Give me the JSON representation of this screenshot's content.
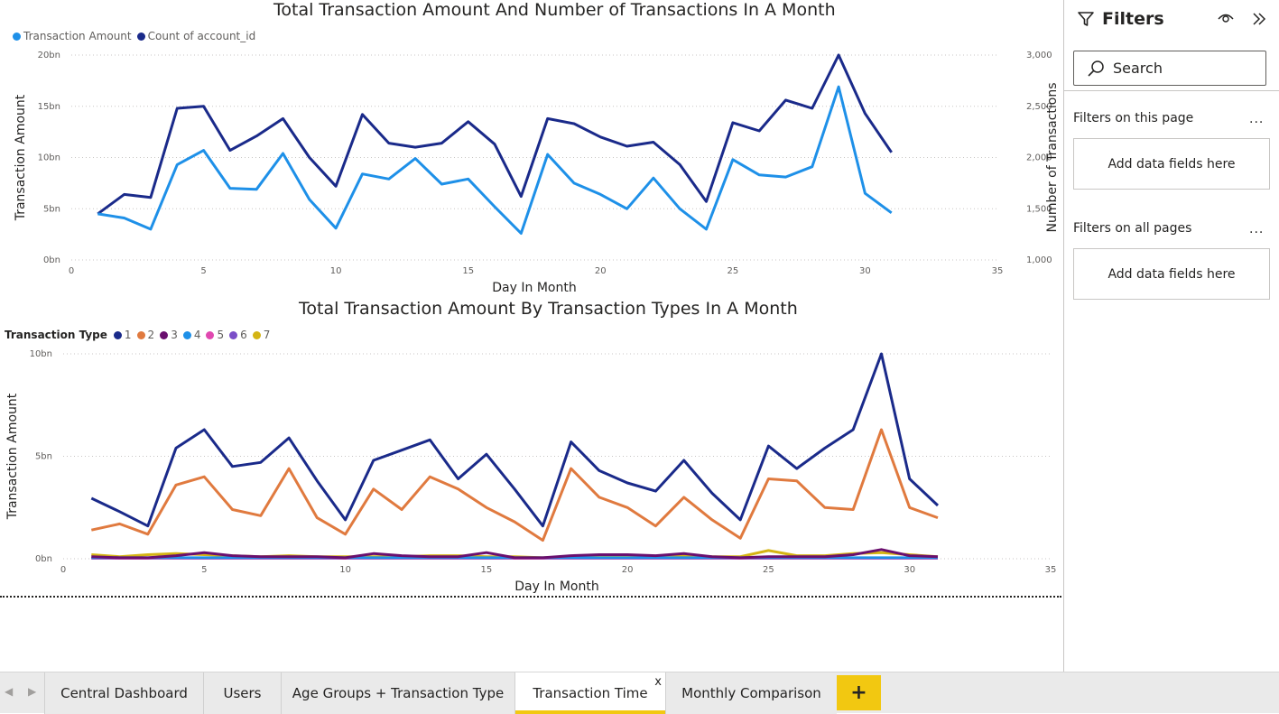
{
  "chart1": {
    "title": "Total Transaction Amount And Number of Transactions In A Month",
    "legend": [
      {
        "label": "Transaction Amount",
        "color": "#1e90e8"
      },
      {
        "label": "Count of account_id",
        "color": "#1a2a8a"
      }
    ],
    "y_left_title": "Transaction Amount",
    "y_right_title": "Number of Transactions",
    "x_title": "Day In Month"
  },
  "chart2": {
    "title": "Total Transaction Amount By Transaction Types In A Month",
    "legend_title": "Transaction Type",
    "y_title": "Transaction Amount",
    "x_title": "Day In Month"
  },
  "chart_data": [
    {
      "type": "line",
      "title": "Total Transaction Amount And Number of Transactions In A Month",
      "xlabel": "Day In Month",
      "ylabel": "Transaction Amount",
      "y2label": "Number of Transactions",
      "xlim": [
        0,
        35
      ],
      "x_ticks": [
        0,
        5,
        10,
        15,
        20,
        25,
        30,
        35
      ],
      "ylim": [
        0,
        20
      ],
      "y_ticks": [
        {
          "v": 0,
          "label": "0bn"
        },
        {
          "v": 5,
          "label": "5bn"
        },
        {
          "v": 10,
          "label": "10bn"
        },
        {
          "v": 15,
          "label": "15bn"
        },
        {
          "v": 20,
          "label": "20bn"
        }
      ],
      "y2lim": [
        1000,
        3000
      ],
      "y2_ticks": [
        {
          "v": 1000,
          "label": "1,000"
        },
        {
          "v": 1500,
          "label": "1,500"
        },
        {
          "v": 2000,
          "label": "2,000"
        },
        {
          "v": 2500,
          "label": "2,500"
        },
        {
          "v": 3000,
          "label": "3,000"
        }
      ],
      "grid": true,
      "legend_position": "top-left",
      "x": [
        1,
        2,
        3,
        4,
        5,
        6,
        7,
        8,
        9,
        10,
        11,
        12,
        13,
        14,
        15,
        16,
        17,
        18,
        19,
        20,
        21,
        22,
        23,
        24,
        25,
        26,
        27,
        28,
        29,
        30,
        31
      ],
      "series": [
        {
          "name": "Transaction Amount",
          "axis": "left",
          "color": "#1e90e8",
          "values": [
            4.5,
            4.1,
            3.0,
            9.3,
            10.7,
            7.0,
            6.9,
            10.4,
            5.9,
            3.1,
            8.4,
            7.9,
            9.9,
            7.4,
            7.9,
            5.2,
            2.6,
            10.3,
            7.5,
            6.4,
            5.0,
            8.0,
            5.0,
            3.0,
            9.8,
            8.3,
            8.1,
            9.1,
            16.9,
            6.5,
            4.6
          ]
        },
        {
          "name": "Count of account_id",
          "axis": "right",
          "color": "#1a2a8a",
          "values": [
            1450,
            1640,
            1610,
            2480,
            2500,
            2070,
            2210,
            2380,
            2000,
            1720,
            2420,
            2140,
            2100,
            2140,
            2350,
            2130,
            1620,
            2380,
            2330,
            2200,
            2110,
            2150,
            1930,
            1570,
            2340,
            2260,
            2560,
            2480,
            3000,
            2430,
            2050
          ]
        }
      ]
    },
    {
      "type": "line",
      "title": "Total Transaction Amount By Transaction Types In A Month",
      "xlabel": "Day In Month",
      "ylabel": "Transaction Amount",
      "xlim": [
        0,
        35
      ],
      "x_ticks": [
        0,
        5,
        10,
        15,
        20,
        25,
        30,
        35
      ],
      "ylim": [
        0,
        10
      ],
      "y_ticks": [
        {
          "v": 0,
          "label": "0bn"
        },
        {
          "v": 5,
          "label": "5bn"
        },
        {
          "v": 10,
          "label": "10bn"
        }
      ],
      "grid": true,
      "legend_position": "top-left",
      "x": [
        1,
        2,
        3,
        4,
        5,
        6,
        7,
        8,
        9,
        10,
        11,
        12,
        13,
        14,
        15,
        16,
        17,
        18,
        19,
        20,
        21,
        22,
        23,
        24,
        25,
        26,
        27,
        28,
        29,
        30,
        31
      ],
      "series": [
        {
          "name": "1",
          "color": "#1a2a8a",
          "values": [
            2.95,
            2.3,
            1.6,
            5.4,
            6.3,
            4.5,
            4.7,
            5.9,
            3.8,
            1.9,
            4.8,
            5.3,
            5.8,
            3.9,
            5.1,
            3.4,
            1.6,
            5.7,
            4.3,
            3.7,
            3.3,
            4.8,
            3.2,
            1.9,
            5.5,
            4.4,
            5.4,
            6.3,
            10.0,
            3.9,
            2.6
          ]
        },
        {
          "name": "2",
          "color": "#e07a3f",
          "values": [
            1.4,
            1.7,
            1.2,
            3.6,
            4.0,
            2.4,
            2.1,
            4.4,
            2.0,
            1.2,
            3.4,
            2.4,
            4.0,
            3.4,
            2.5,
            1.8,
            0.9,
            4.4,
            3.0,
            2.5,
            1.6,
            3.0,
            1.9,
            1.0,
            3.9,
            3.8,
            2.5,
            2.4,
            6.3,
            2.5,
            2.0
          ]
        },
        {
          "name": "3",
          "color": "#6a0f6e",
          "values": [
            0.1,
            0.05,
            0.05,
            0.15,
            0.3,
            0.15,
            0.1,
            0.1,
            0.1,
            0.05,
            0.25,
            0.15,
            0.1,
            0.1,
            0.3,
            0.05,
            0.05,
            0.15,
            0.2,
            0.2,
            0.15,
            0.25,
            0.1,
            0.05,
            0.1,
            0.1,
            0.1,
            0.2,
            0.45,
            0.15,
            0.1
          ]
        },
        {
          "name": "4",
          "color": "#1e90e8",
          "values": [
            0.05,
            0.05,
            0.05,
            0.05,
            0.05,
            0.05,
            0.05,
            0.05,
            0.05,
            0.05,
            0.05,
            0.05,
            0.05,
            0.05,
            0.05,
            0.05,
            0.05,
            0.05,
            0.05,
            0.05,
            0.05,
            0.05,
            0.05,
            0.05,
            0.05,
            0.05,
            0.05,
            0.05,
            0.05,
            0.05,
            0.05
          ]
        },
        {
          "name": "5",
          "color": "#e048b0",
          "values": [
            0.02,
            0.02,
            0.02,
            0.02,
            0.02,
            0.02,
            0.02,
            0.02,
            0.02,
            0.02,
            0.02,
            0.02,
            0.02,
            0.02,
            0.02,
            0.02,
            0.02,
            0.02,
            0.02,
            0.02,
            0.02,
            0.02,
            0.02,
            0.02,
            0.02,
            0.02,
            0.02,
            0.02,
            0.02,
            0.02,
            0.02
          ]
        },
        {
          "name": "6",
          "color": "#7b4fc8",
          "values": [
            0.03,
            0.03,
            0.03,
            0.03,
            0.03,
            0.03,
            0.03,
            0.03,
            0.03,
            0.03,
            0.03,
            0.03,
            0.03,
            0.03,
            0.03,
            0.03,
            0.03,
            0.03,
            0.03,
            0.03,
            0.03,
            0.03,
            0.03,
            0.03,
            0.03,
            0.03,
            0.03,
            0.03,
            0.03,
            0.03,
            0.03
          ]
        },
        {
          "name": "7",
          "color": "#d4b414",
          "values": [
            0.2,
            0.1,
            0.2,
            0.25,
            0.2,
            0.15,
            0.1,
            0.15,
            0.1,
            0.1,
            0.1,
            0.1,
            0.15,
            0.15,
            0.1,
            0.1,
            0.05,
            0.1,
            0.1,
            0.1,
            0.1,
            0.15,
            0.1,
            0.1,
            0.4,
            0.15,
            0.15,
            0.25,
            0.3,
            0.2,
            0.1
          ]
        }
      ]
    }
  ],
  "filters": {
    "title": "Filters",
    "search_placeholder": "Search",
    "page_label": "Filters on this page",
    "all_label": "Filters on all pages",
    "more": "...",
    "dropzone": "Add data fields here"
  },
  "tabs": [
    {
      "label": "Central Dashboard",
      "active": false
    },
    {
      "label": "Users",
      "active": false
    },
    {
      "label": "Age Groups + Transaction Type",
      "active": false
    },
    {
      "label": "Transaction Time",
      "active": true
    },
    {
      "label": "Monthly Comparison",
      "active": false
    }
  ],
  "tab_close": "x",
  "add_page": "+",
  "nav": {
    "prev": "◀",
    "next": "▶"
  },
  "colors": {
    "accent": "#f2c811",
    "series_amount": "#1e90e8",
    "series_count": "#1a2a8a"
  }
}
